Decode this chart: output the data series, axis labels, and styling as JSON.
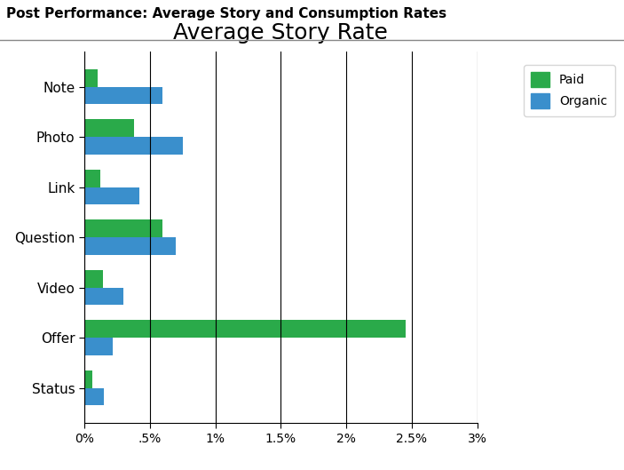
{
  "title": "Average Story Rate",
  "super_title": "Post Performance: Average Story and Consumption Rates",
  "categories": [
    "Status",
    "Offer",
    "Video",
    "Question",
    "Link",
    "Photo",
    "Note"
  ],
  "paid": [
    0.0006,
    0.0245,
    0.0014,
    0.006,
    0.0012,
    0.0038,
    0.001
  ],
  "organic": [
    0.0015,
    0.0022,
    0.003,
    0.007,
    0.0042,
    0.0075,
    0.006
  ],
  "paid_color": "#2aaa4a",
  "organic_color": "#3a8fcc",
  "xlim": [
    0,
    0.03
  ],
  "xticks": [
    0,
    0.005,
    0.01,
    0.015,
    0.02,
    0.025,
    0.03
  ],
  "xticklabels": [
    "0%",
    ".5%",
    "1%",
    "1.5%",
    "2%",
    "2.5%",
    "3%"
  ],
  "background_color": "#ffffff",
  "chart_bg": "#ffffff",
  "grid_color": "#000000",
  "bar_height": 0.35,
  "title_fontsize": 18,
  "label_fontsize": 11,
  "tick_fontsize": 10,
  "super_title_fontsize": 11
}
